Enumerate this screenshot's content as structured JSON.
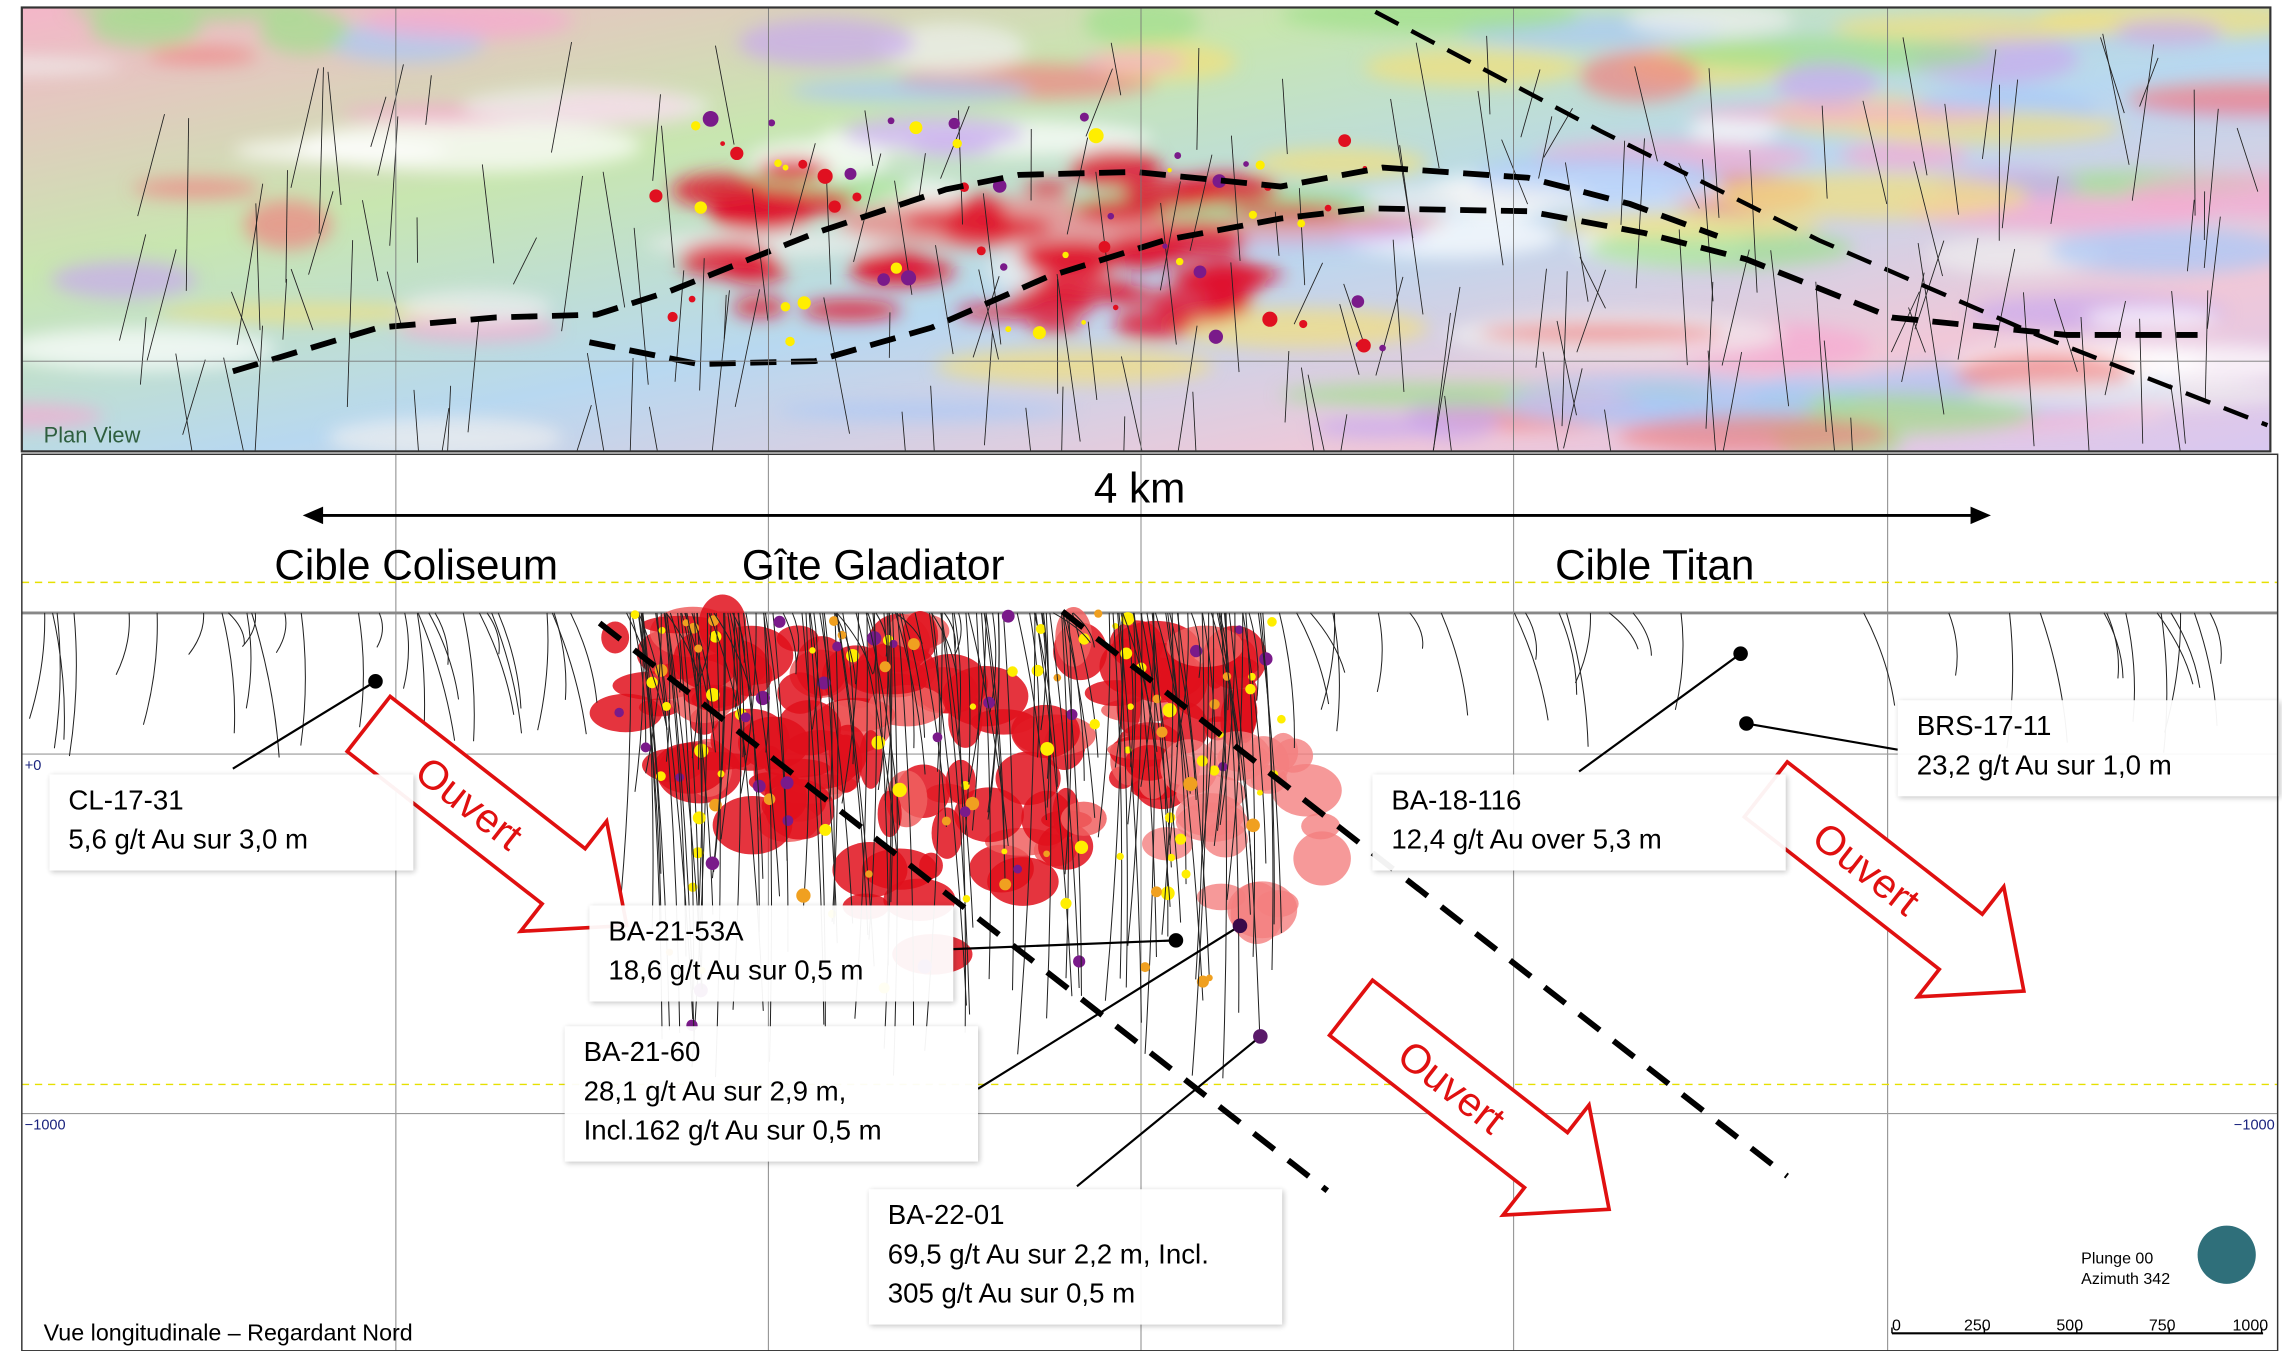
{
  "plan_view": {
    "label": "Plan View"
  },
  "section": {
    "scale_label": "4 km",
    "targets": [
      "Cible Coliseum",
      "Gîte Gladiator",
      "Cible Titan"
    ],
    "elevation_labels": [
      "+0",
      "−1000",
      "−1000"
    ],
    "open_labels": [
      "Ouvert",
      "Ouvert",
      "Ouvert"
    ],
    "callouts": [
      {
        "hole": "CL-17-31",
        "lines": [
          "5,6 g/t Au sur 3,0 m"
        ]
      },
      {
        "hole": "BA-21-53A",
        "lines": [
          "18,6 g/t Au sur 0,5 m"
        ]
      },
      {
        "hole": "BA-21-60",
        "lines": [
          "28,1 g/t Au sur 2,9 m,",
          "Incl.162 g/t Au sur 0,5 m"
        ]
      },
      {
        "hole": "BA-22-01",
        "lines": [
          "69,5 g/t Au sur 2,2 m, Incl.",
          "305 g/t Au sur 0,5 m"
        ]
      },
      {
        "hole": "BA-18-116",
        "lines": [
          "12,4 g/t Au over 5,3 m"
        ]
      },
      {
        "hole": "BRS-17-11",
        "lines": [
          "23,2 g/t Au sur 1,0 m"
        ]
      }
    ],
    "view_note": "Vue longitudinale – Regardant Nord",
    "orientation": [
      "Plunge 00",
      "Azimuth 342"
    ],
    "scale_bar": [
      "0",
      "250",
      "500",
      "750",
      "1000"
    ]
  }
}
